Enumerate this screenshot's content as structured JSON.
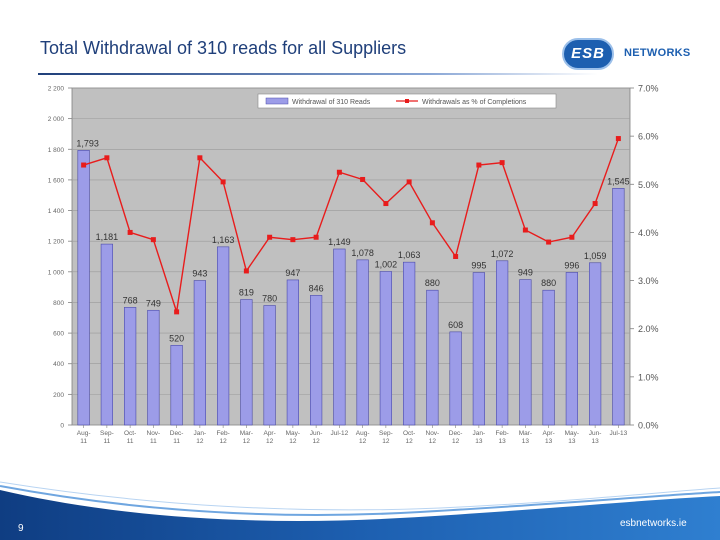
{
  "title": "Total Withdrawal of 310 reads for all Suppliers",
  "logo": {
    "badge": "ESB",
    "text": "NETWORKS"
  },
  "footer": {
    "page_number": "9",
    "website": "esbnetworks.ie"
  },
  "colors": {
    "bar": "#9c9ce8",
    "bar_edge": "#4a4aa8",
    "line": "#e81c1c",
    "plot_bg": "#c0c0c0",
    "title": "#1f3f7a",
    "footer": "#1d4f9c"
  },
  "chart_data": {
    "type": "bar+line",
    "categories": [
      "Aug-11",
      "Sep-11",
      "Oct-11",
      "Nov-11",
      "Dec-11",
      "Jan-12",
      "Feb-12",
      "Mar-12",
      "Apr-12",
      "May-12",
      "Jun-12",
      "Jul-12",
      "Aug-12",
      "Sep-12",
      "Oct-12",
      "Nov-12",
      "Dec-12",
      "Jan-13",
      "Feb-13",
      "Mar-13",
      "Apr-13",
      "May-13",
      "Jun-13",
      "Jul-13"
    ],
    "category_labels": [
      [
        "Aug-",
        "11"
      ],
      [
        "Sep-",
        "11"
      ],
      [
        "Oct-",
        "11"
      ],
      [
        "Nov-",
        "11"
      ],
      [
        "Dec-",
        "11"
      ],
      [
        "Jan-",
        "12"
      ],
      [
        "Feb-",
        "12"
      ],
      [
        "Mar-",
        "12"
      ],
      [
        "Apr-",
        "12"
      ],
      [
        "May-",
        "12"
      ],
      [
        "Jun-",
        "12"
      ],
      [
        "Jul-12",
        ""
      ],
      [
        "Aug-",
        "12"
      ],
      [
        "Sep-",
        "12"
      ],
      [
        "Oct-",
        "12"
      ],
      [
        "Nov-",
        "12"
      ],
      [
        "Dec-",
        "12"
      ],
      [
        "Jan-",
        "13"
      ],
      [
        "Feb-",
        "13"
      ],
      [
        "Mar-",
        "13"
      ],
      [
        "Apr-",
        "13"
      ],
      [
        "May-",
        "13"
      ],
      [
        "Jun-",
        "13"
      ],
      [
        "Jul-13",
        ""
      ]
    ],
    "series": [
      {
        "name": "Withdrawal of 310 Reads",
        "type": "bar",
        "axis": "left",
        "values": [
          1793,
          1181,
          768,
          749,
          520,
          943,
          1163,
          819,
          780,
          947,
          846,
          1149,
          1078,
          1002,
          1063,
          880,
          608,
          995,
          1072,
          949,
          880,
          996,
          1059,
          1545
        ],
        "labels": [
          "1,793",
          "1,181",
          "768",
          "749",
          "520",
          "943",
          "1,163",
          "819",
          "780",
          "947",
          "846",
          "1,149",
          "1,078",
          "1,002",
          "1,063",
          "880",
          "608",
          "995",
          "1,072",
          "949",
          "880",
          "996",
          "1,059",
          "1,545"
        ]
      },
      {
        "name": "Withdrawals as % of Completions",
        "type": "line",
        "axis": "right",
        "values": [
          5.4,
          5.55,
          4.0,
          3.85,
          2.35,
          5.55,
          5.05,
          3.2,
          3.9,
          3.85,
          3.9,
          5.25,
          5.1,
          4.6,
          5.05,
          4.2,
          3.5,
          5.4,
          5.45,
          4.05,
          3.8,
          3.9,
          4.6,
          5.95
        ]
      }
    ],
    "y_left": {
      "min": 0,
      "max": 2200,
      "ticks": [
        0,
        200,
        400,
        600,
        800,
        1000,
        1200,
        1400,
        1600,
        1800,
        2000,
        2200
      ],
      "tick_labels": [
        "0",
        "200",
        "400",
        "600",
        "800",
        "1 000",
        "1 200",
        "1 400",
        "1 600",
        "1 800",
        "2 000",
        "2 200"
      ]
    },
    "y_right": {
      "min": 0,
      "max": 7,
      "ticks": [
        0,
        1,
        2,
        3,
        4,
        5,
        6,
        7
      ],
      "tick_labels": [
        "0.0%",
        "1.0%",
        "2.0%",
        "3.0%",
        "4.0%",
        "5.0%",
        "6.0%",
        "7.0%"
      ]
    },
    "legend_position": "top-center",
    "grid": true
  }
}
